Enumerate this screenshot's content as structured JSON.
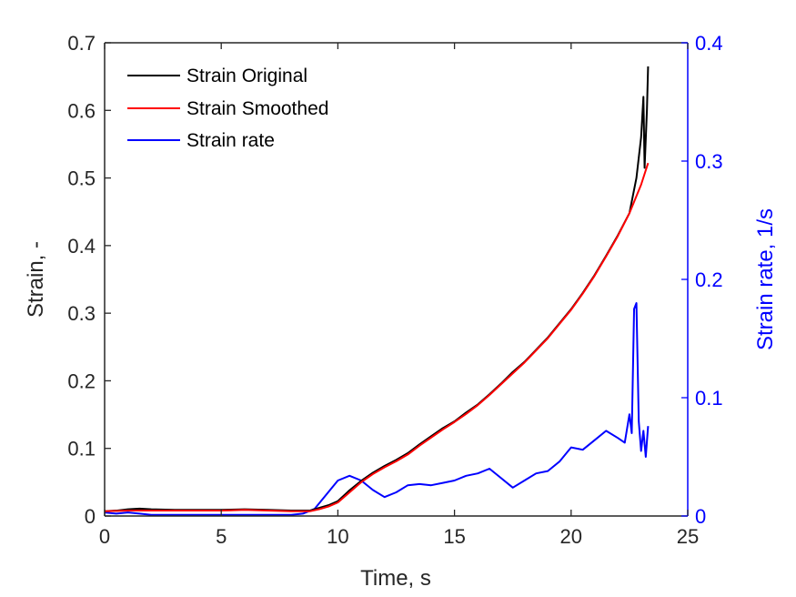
{
  "chart_data": {
    "type": "line",
    "xlabel": "Time, s",
    "ylabel": "Strain, -",
    "y2label": "Strain rate, 1/s",
    "xlim": [
      0,
      25
    ],
    "ylim": [
      0,
      0.7
    ],
    "y2lim": [
      0,
      0.4
    ],
    "xticks": [
      "0",
      "5",
      "10",
      "15",
      "20",
      "25"
    ],
    "yticks": [
      "0",
      "0.1",
      "0.2",
      "0.3",
      "0.4",
      "0.5",
      "0.6",
      "0.7"
    ],
    "y2ticks": [
      "0",
      "0.1",
      "0.2",
      "0.3",
      "0.4"
    ],
    "legend_position": "top-left",
    "grid": false,
    "colors": {
      "y2_axis": "#0000ff"
    },
    "series": [
      {
        "name": "Strain Original",
        "axis": "left",
        "color": "#000000",
        "x": [
          0,
          0.5,
          1,
          1.5,
          2,
          3,
          4,
          5,
          6,
          7,
          8,
          8.8,
          9.2,
          9.6,
          10,
          10.5,
          11,
          11.5,
          12,
          12.5,
          13,
          13.5,
          14,
          14.5,
          15,
          15.5,
          16,
          16.5,
          17,
          17.5,
          18,
          18.5,
          19,
          19.5,
          20,
          20.5,
          21,
          21.5,
          22,
          22.5,
          22.8,
          23.0,
          23.1,
          23.15,
          23.25,
          23.3
        ],
        "y": [
          0.007,
          0.008,
          0.01,
          0.011,
          0.01,
          0.009,
          0.009,
          0.009,
          0.01,
          0.009,
          0.008,
          0.008,
          0.012,
          0.016,
          0.022,
          0.038,
          0.052,
          0.064,
          0.074,
          0.083,
          0.093,
          0.106,
          0.118,
          0.13,
          0.14,
          0.153,
          0.165,
          0.18,
          0.196,
          0.213,
          0.228,
          0.246,
          0.264,
          0.285,
          0.306,
          0.33,
          0.356,
          0.385,
          0.415,
          0.448,
          0.5,
          0.56,
          0.62,
          0.515,
          0.6,
          0.665
        ]
      },
      {
        "name": "Strain Smoothed",
        "axis": "left",
        "color": "#ff0000",
        "x": [
          0,
          1,
          2,
          3,
          4,
          5,
          6,
          7,
          8,
          8.8,
          9.2,
          9.6,
          10,
          10.5,
          11,
          11.5,
          12,
          12.5,
          13,
          13.5,
          14,
          14.5,
          15,
          15.5,
          16,
          16.5,
          17,
          17.5,
          18,
          18.5,
          19,
          19.5,
          20,
          20.5,
          21,
          21.5,
          22,
          22.5,
          23,
          23.3
        ],
        "y": [
          0.007,
          0.008,
          0.008,
          0.008,
          0.008,
          0.008,
          0.009,
          0.008,
          0.007,
          0.007,
          0.01,
          0.014,
          0.02,
          0.035,
          0.05,
          0.062,
          0.072,
          0.081,
          0.091,
          0.104,
          0.116,
          0.128,
          0.139,
          0.151,
          0.164,
          0.179,
          0.195,
          0.211,
          0.227,
          0.245,
          0.263,
          0.284,
          0.305,
          0.329,
          0.355,
          0.384,
          0.414,
          0.448,
          0.49,
          0.522
        ]
      },
      {
        "name": "Strain rate",
        "axis": "right",
        "color": "#0000ff",
        "x": [
          0,
          0.5,
          1,
          1.5,
          2,
          3,
          4,
          5,
          6,
          7,
          8,
          8.5,
          9,
          9.5,
          10,
          10.5,
          11,
          11.5,
          12,
          12.5,
          13,
          13.5,
          14,
          14.5,
          15,
          15.5,
          16,
          16.5,
          17,
          17.5,
          18,
          18.5,
          19,
          19.5,
          20,
          20.5,
          21,
          21.5,
          22,
          22.3,
          22.5,
          22.6,
          22.7,
          22.8,
          22.9,
          23.0,
          23.1,
          23.2,
          23.3
        ],
        "y": [
          0.003,
          0.002,
          0.003,
          0.002,
          0.001,
          0.001,
          0.001,
          0.001,
          0.001,
          0.001,
          0.001,
          0.002,
          0.006,
          0.018,
          0.03,
          0.034,
          0.03,
          0.022,
          0.016,
          0.02,
          0.026,
          0.027,
          0.026,
          0.028,
          0.03,
          0.034,
          0.036,
          0.04,
          0.032,
          0.024,
          0.03,
          0.036,
          0.038,
          0.046,
          0.058,
          0.056,
          0.064,
          0.072,
          0.066,
          0.062,
          0.086,
          0.07,
          0.175,
          0.18,
          0.08,
          0.055,
          0.072,
          0.05,
          0.076
        ]
      }
    ]
  }
}
